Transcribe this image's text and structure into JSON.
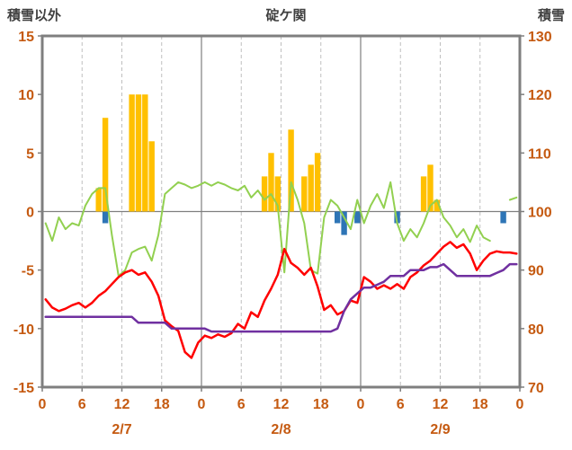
{
  "chart_data": {
    "type": "combo",
    "title": "碇ケ関",
    "days": [
      "2/7",
      "2/8",
      "2/9"
    ],
    "hour_tick_labels": [
      "0",
      "6",
      "12",
      "18",
      "0",
      "6",
      "12",
      "18",
      "0",
      "6",
      "12",
      "18",
      "0"
    ],
    "left_axis": {
      "label": "積雪以外",
      "min": -15,
      "max": 15,
      "ticks": [
        15,
        10,
        5,
        0,
        -5,
        -10,
        -15
      ]
    },
    "right_axis": {
      "label": "積雪",
      "min": 70,
      "max": 130,
      "ticks": [
        130,
        120,
        110,
        100,
        90,
        80,
        70
      ]
    },
    "colors": {
      "axis_text": "#C55A11",
      "frame": "#7F7F7F",
      "grid": "#BFBFBF",
      "day_line": "#7F7F7F",
      "snow_bar": "#FFC000",
      "rain_bar": "#2E75B6",
      "green_line": "#92D050",
      "red_line": "#FF0000",
      "purple_line": "#7030A0"
    },
    "series": [
      {
        "name": "snowfall-bars",
        "type": "bar",
        "axis": "left",
        "color": "#FFC000",
        "values": [
          0,
          0,
          0,
          0,
          0,
          0,
          0,
          0,
          2,
          8,
          0,
          0,
          0,
          10,
          10,
          10,
          6,
          0,
          0,
          0,
          0,
          0,
          0,
          0,
          0,
          0,
          0,
          0,
          0,
          0,
          0,
          0,
          0,
          3,
          5,
          3,
          0,
          7,
          0,
          3,
          4,
          5,
          0,
          0,
          0,
          0,
          0,
          0,
          0,
          0,
          0,
          0,
          0,
          0,
          0,
          0,
          0,
          3,
          4,
          1,
          0,
          0,
          0,
          0,
          0,
          0,
          0,
          0,
          0,
          0,
          0,
          0
        ]
      },
      {
        "name": "negative-bars",
        "type": "bar",
        "axis": "left",
        "color": "#2E75B6",
        "values": [
          0,
          0,
          0,
          0,
          0,
          0,
          0,
          0,
          0,
          -1,
          0,
          0,
          0,
          0,
          0,
          0,
          0,
          0,
          0,
          0,
          0,
          0,
          0,
          0,
          0,
          0,
          0,
          0,
          0,
          0,
          0,
          0,
          0,
          0,
          0,
          0,
          0,
          0,
          0,
          0,
          0,
          0,
          0,
          0,
          -1,
          -2,
          0,
          -1,
          0,
          0,
          0,
          0,
          0,
          -1,
          0,
          0,
          0,
          0,
          0,
          0,
          0,
          0,
          0,
          0,
          0,
          0,
          0,
          0,
          0,
          -1,
          0,
          0
        ]
      },
      {
        "name": "green-line",
        "type": "line",
        "axis": "left",
        "color": "#92D050",
        "width": 2,
        "values": [
          -1,
          -2.5,
          -0.5,
          -1.5,
          -1,
          -1.2,
          0.5,
          1.5,
          2,
          2,
          -2,
          -5.5,
          -5,
          -3.5,
          -3.2,
          -3,
          -4.2,
          -2,
          1.5,
          2,
          2.5,
          2.3,
          2,
          2.2,
          2.5,
          2.2,
          2.5,
          2.3,
          2,
          1.8,
          2.2,
          1.2,
          1.8,
          1,
          1.5,
          0.5,
          -5.2,
          2.5,
          1,
          -1,
          -5,
          -5.3,
          -0.5,
          1,
          0.5,
          -0.5,
          -1.5,
          1,
          -1,
          0.5,
          1.5,
          0.3,
          2.5,
          -1,
          -2.5,
          -1.5,
          -2.2,
          -1,
          0.5,
          1,
          -0.5,
          -1.2,
          -2.2,
          -1.5,
          -2.6,
          -1.2,
          -2.2,
          -2.5,
          null,
          null,
          1,
          1.2
        ]
      },
      {
        "name": "temperature-line",
        "type": "line",
        "axis": "left",
        "color": "#FF0000",
        "width": 2.5,
        "values": [
          -7.5,
          -8.2,
          -8.5,
          -8.3,
          -8,
          -7.8,
          -8.2,
          -7.8,
          -7.2,
          -6.8,
          -6.2,
          -5.6,
          -5.2,
          -5,
          -5.4,
          -5.2,
          -6,
          -7.2,
          -9.3,
          -9.8,
          -10.2,
          -12,
          -12.5,
          -11.2,
          -10.6,
          -10.8,
          -10.5,
          -10.7,
          -10.4,
          -9.6,
          -10,
          -8.6,
          -9,
          -7.6,
          -6.6,
          -5.4,
          -3.2,
          -4.4,
          -4.8,
          -5.4,
          -4.8,
          -6.4,
          -8.4,
          -8,
          -8.8,
          -8.5,
          -7.6,
          -7.8,
          -5.6,
          -6,
          -6.6,
          -6.3,
          -6.6,
          -6.2,
          -6.6,
          -5.6,
          -5.2,
          -4.6,
          -4.2,
          -3.6,
          -3,
          -2.6,
          -3.1,
          -2.8,
          -3.6,
          -5,
          -4.2,
          -3.6,
          -3.4,
          -3.5,
          -3.5,
          -3.6
        ]
      },
      {
        "name": "snow-depth-line",
        "type": "line",
        "axis": "right",
        "color": "#7030A0",
        "width": 2.5,
        "values": [
          82,
          82,
          82,
          82,
          82,
          82,
          82,
          82,
          82,
          82,
          82,
          82,
          82,
          82,
          81,
          81,
          81,
          81,
          81,
          80,
          80,
          80,
          80,
          80,
          80,
          79.5,
          79.5,
          79.5,
          79.5,
          79.5,
          79.5,
          79.5,
          79.5,
          79.5,
          79.5,
          79.5,
          79.5,
          79.5,
          79.5,
          79.5,
          79.5,
          79.5,
          79.5,
          79.5,
          80,
          83,
          85,
          86,
          87,
          87,
          87.5,
          88,
          89,
          89,
          89,
          90,
          90,
          90,
          90.5,
          90.5,
          91,
          90,
          89,
          89,
          89,
          89,
          89,
          89,
          89.5,
          90,
          91,
          91
        ]
      }
    ]
  }
}
